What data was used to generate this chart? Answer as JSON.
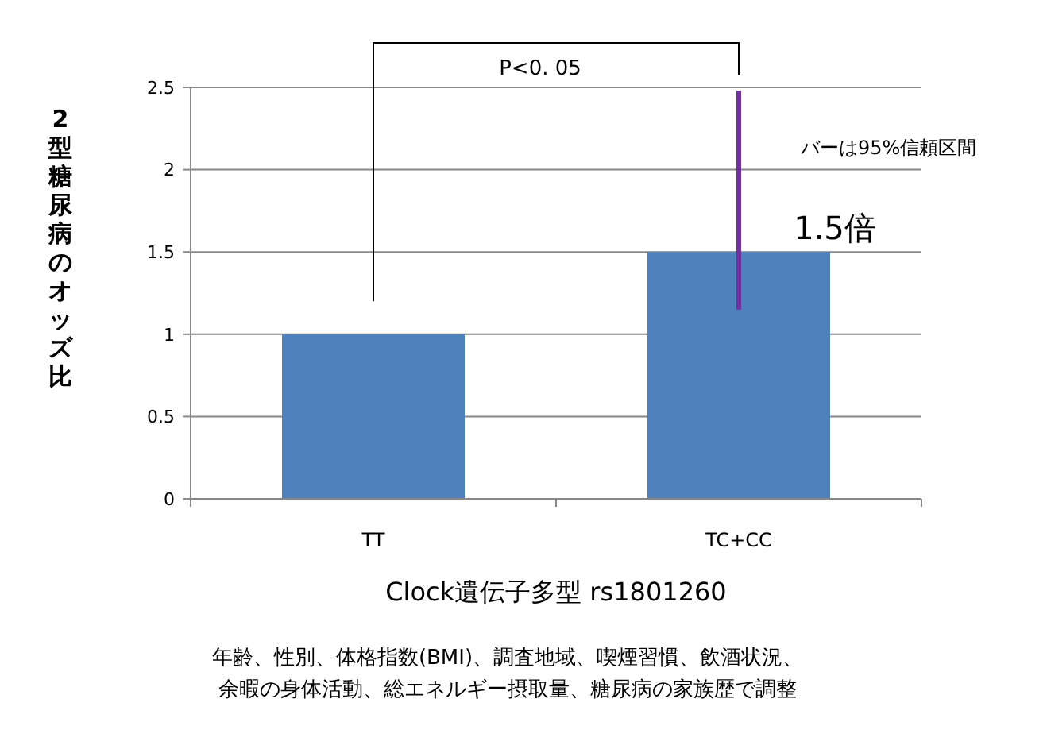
{
  "chart_data": {
    "type": "bar",
    "ylabel": "2型糖尿病のオッズ比",
    "xlabel": "Clock遺伝子多型 rs1801260",
    "categories": [
      "TT",
      "TC+CC"
    ],
    "values": [
      1,
      1.5
    ],
    "color": "#4f81bd",
    "errors": [
      null,
      [
        1.15,
        2.48
      ]
    ],
    "value_labels": [
      null,
      "1.5倍"
    ],
    "ylim": [
      0,
      2.5
    ],
    "yticks": [
      0,
      0.5,
      1,
      1.5,
      2,
      2.5
    ],
    "grid": "y",
    "annotations": [
      "P<0. 05",
      "バーは95%信頼区間",
      "年齢、性別、体格指数(BMI)、調査地域、喫煙習慣、飲酒状況、",
      "余暇の身体活動、総エネルギー摂取量、糖尿病の家族歴で調整"
    ]
  }
}
